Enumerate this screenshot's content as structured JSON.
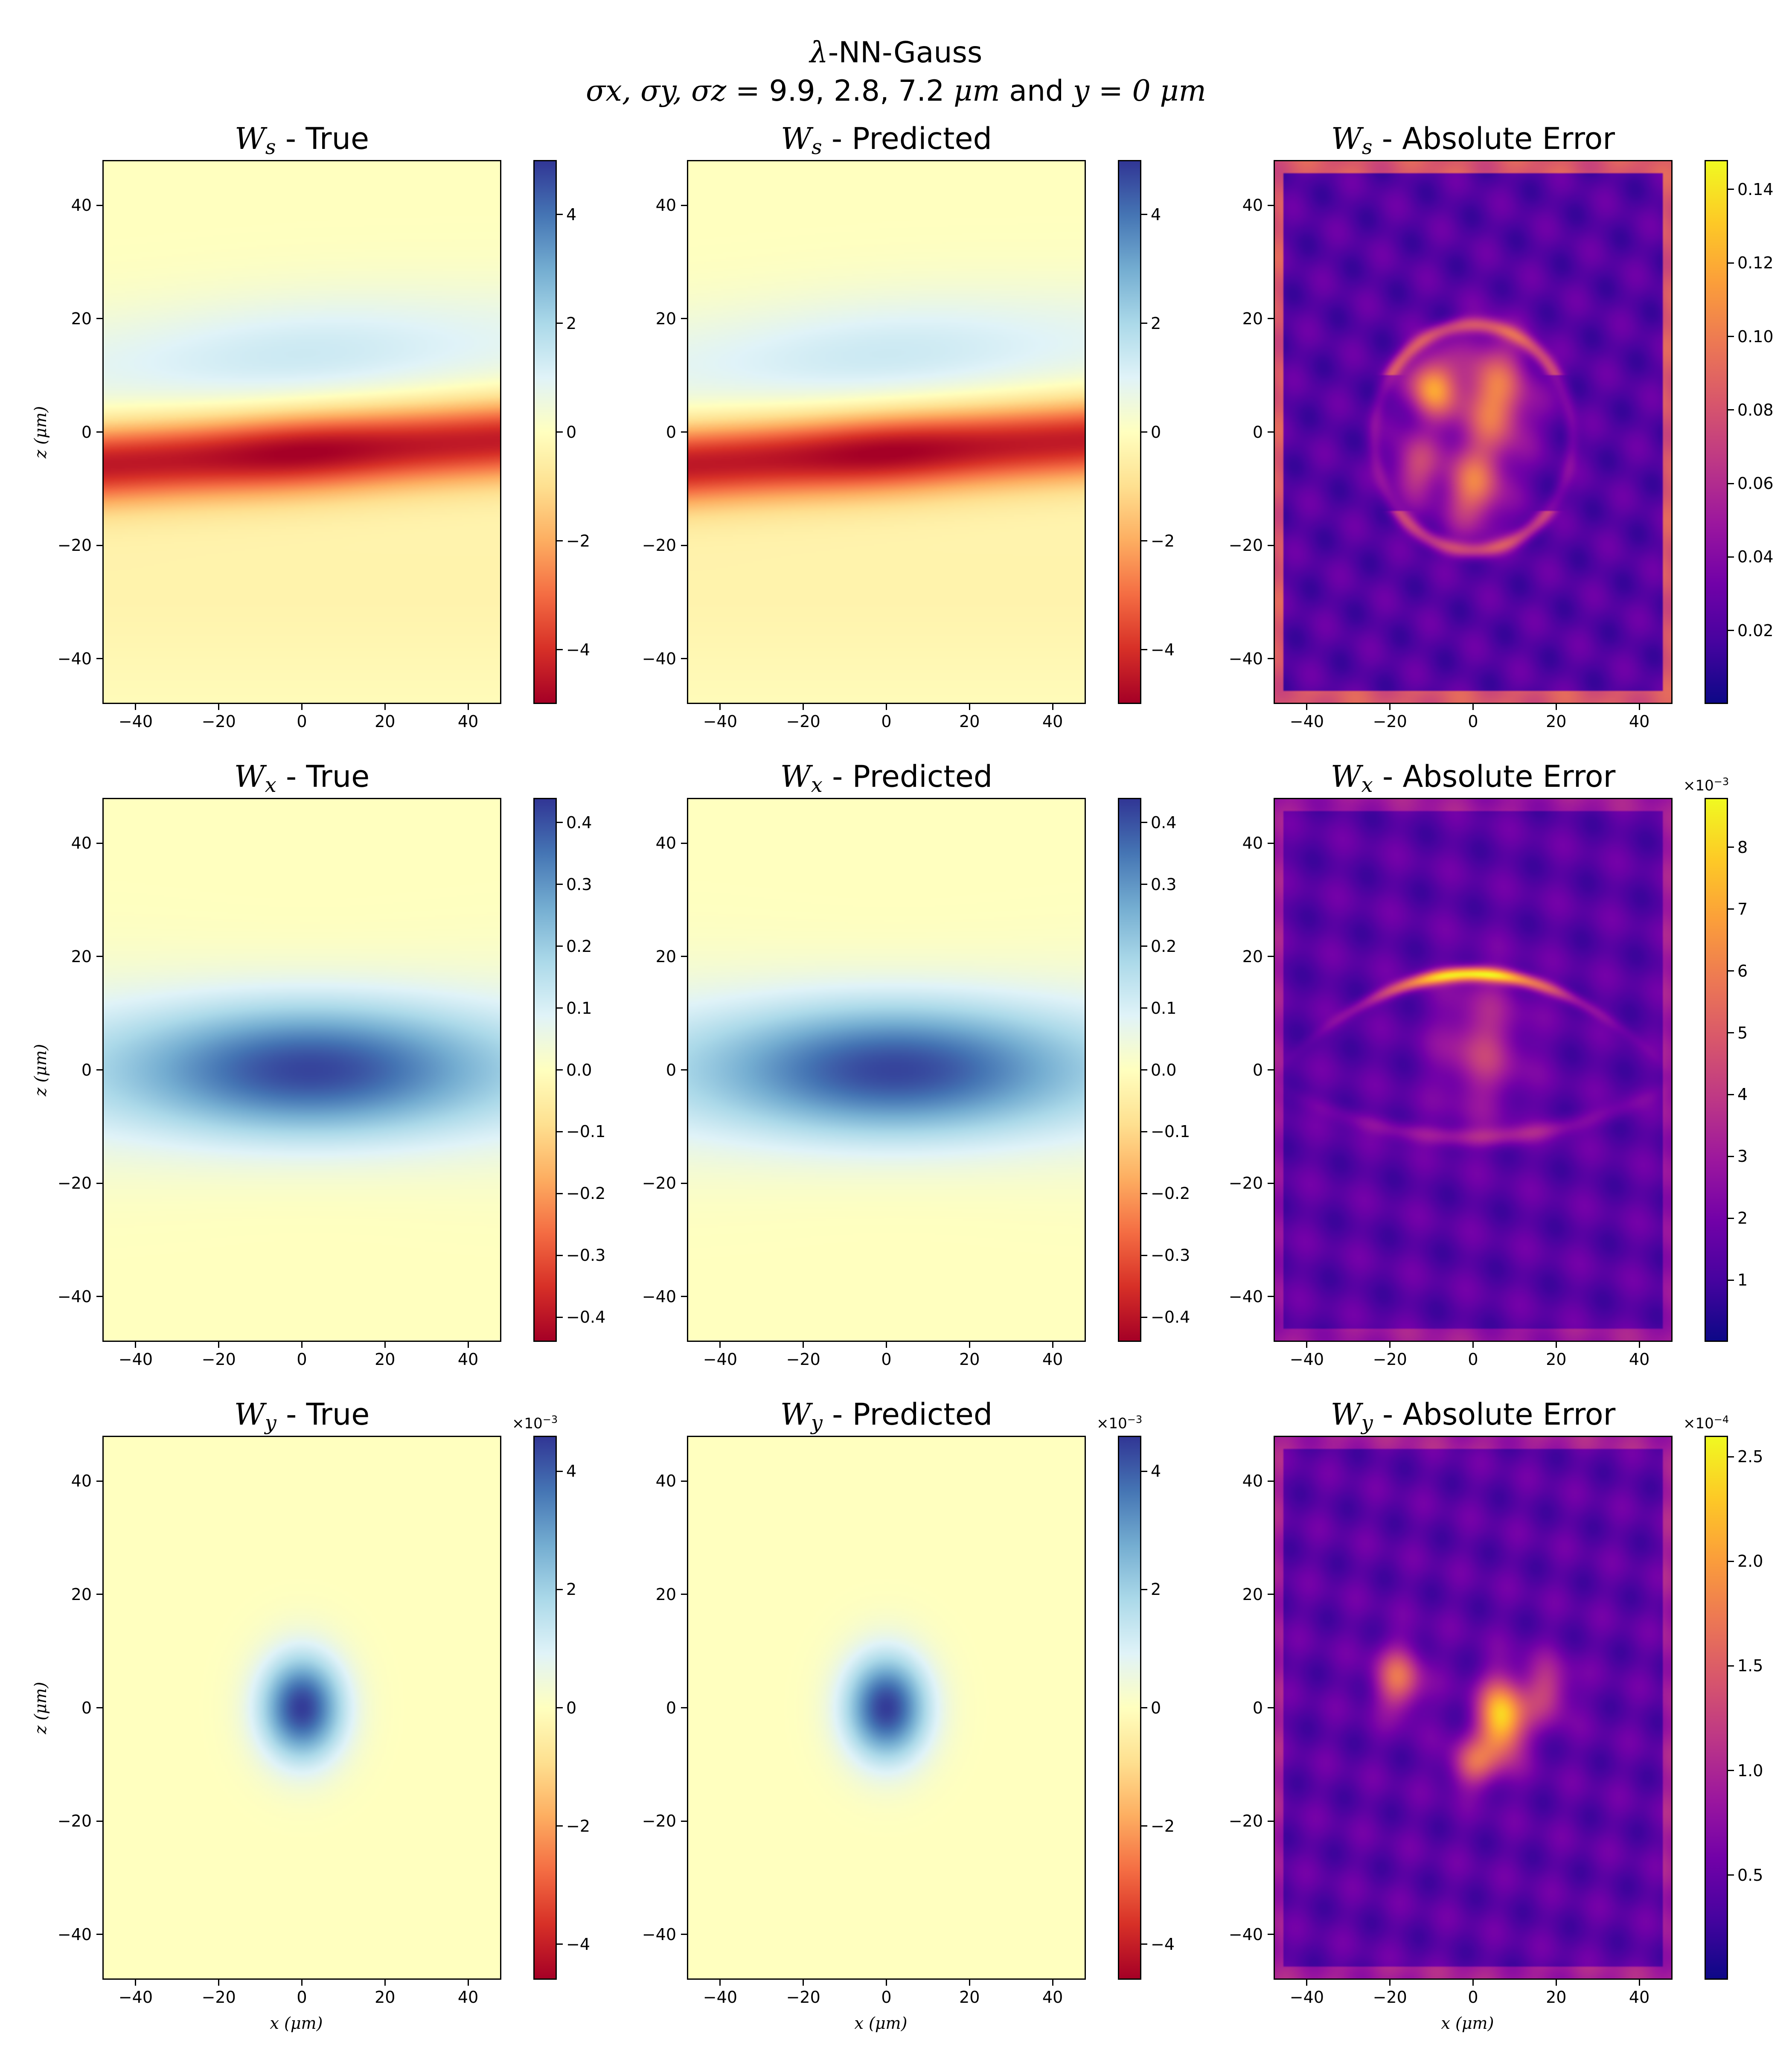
{
  "suptitle": {
    "line1_lambda": "λ",
    "line1_rest": "-NN-Gauss",
    "line2_sigmas": "σx, σy, σz = ",
    "line2_values": " 9.9, 2.8, 7.2 ",
    "line2_unit": "μm",
    "line2_mid": "  and ",
    "line2_y": "y = 0 ",
    "line2_unit2": "μm"
  },
  "labels": {
    "xlabel": "x  (μm)",
    "xlabel_var": "x",
    "xlabel_unit": "(μm)",
    "ylabel": "z  (μm)",
    "ylabel_var": "z",
    "ylabel_unit": "(μm)"
  },
  "colors": {
    "rdylbu_low": "#a50026",
    "rdylbu_mid": "#ffffbf",
    "rdylbu_high": "#313695",
    "plasma_low": "#0d0887",
    "plasma_high": "#f0f921"
  },
  "chart_data": [
    {
      "type": "heatmap",
      "row": 0,
      "col": 0,
      "var": "W",
      "sub": "s",
      "title_suffix": " - True",
      "title": "Ws - True",
      "colormap": "RdYlBu",
      "xlim": [
        -48,
        48
      ],
      "ylim": [
        -48,
        48
      ],
      "xticks": [
        "−40",
        "−20",
        "0",
        "20",
        "40"
      ],
      "yticks": [
        "−40",
        "−20",
        "0",
        "20",
        "40"
      ],
      "clim": [
        -5,
        5
      ],
      "cticks": [
        "−4",
        "−2",
        "0",
        "2",
        "4"
      ],
      "ctick_values": [
        -4,
        -2,
        0,
        2,
        4
      ],
      "offset_label": "",
      "field": "ws"
    },
    {
      "type": "heatmap",
      "row": 0,
      "col": 1,
      "var": "W",
      "sub": "s",
      "title_suffix": " - Predicted",
      "title": "Ws - Predicted",
      "colormap": "RdYlBu",
      "xlim": [
        -48,
        48
      ],
      "ylim": [
        -48,
        48
      ],
      "xticks": [
        "−40",
        "−20",
        "0",
        "20",
        "40"
      ],
      "yticks": [
        "−40",
        "−20",
        "0",
        "20",
        "40"
      ],
      "clim": [
        -5,
        5
      ],
      "cticks": [
        "−4",
        "−2",
        "0",
        "2",
        "4"
      ],
      "ctick_values": [
        -4,
        -2,
        0,
        2,
        4
      ],
      "offset_label": "",
      "field": "ws"
    },
    {
      "type": "heatmap",
      "row": 0,
      "col": 2,
      "var": "W",
      "sub": "s",
      "title_suffix": " - Absolute Error",
      "title": "Ws - Absolute Error",
      "colormap": "plasma",
      "xlim": [
        -48,
        48
      ],
      "ylim": [
        -48,
        48
      ],
      "xticks": [
        "−40",
        "−20",
        "0",
        "20",
        "40"
      ],
      "yticks": [
        "−40",
        "−20",
        "0",
        "20",
        "40"
      ],
      "clim": [
        0,
        0.148
      ],
      "cticks": [
        "0.02",
        "0.04",
        "0.06",
        "0.08",
        "0.10",
        "0.12",
        "0.14"
      ],
      "ctick_values": [
        0.02,
        0.04,
        0.06,
        0.08,
        0.1,
        0.12,
        0.14
      ],
      "offset_label": "",
      "field": "err_s"
    },
    {
      "type": "heatmap",
      "row": 1,
      "col": 0,
      "var": "W",
      "sub": "x",
      "title_suffix": " - True",
      "title": "Wx - True",
      "colormap": "RdYlBu",
      "xlim": [
        -48,
        48
      ],
      "ylim": [
        -48,
        48
      ],
      "xticks": [
        "−40",
        "−20",
        "0",
        "20",
        "40"
      ],
      "yticks": [
        "−40",
        "−20",
        "0",
        "20",
        "40"
      ],
      "clim": [
        -0.44,
        0.44
      ],
      "cticks": [
        "−0.4",
        "−0.3",
        "−0.2",
        "−0.1",
        "0.0",
        "0.1",
        "0.2",
        "0.3",
        "0.4"
      ],
      "ctick_values": [
        -0.4,
        -0.3,
        -0.2,
        -0.1,
        0.0,
        0.1,
        0.2,
        0.3,
        0.4
      ],
      "offset_label": "",
      "field": "wx"
    },
    {
      "type": "heatmap",
      "row": 1,
      "col": 1,
      "var": "W",
      "sub": "x",
      "title_suffix": " - Predicted",
      "title": "Wx - Predicted",
      "colormap": "RdYlBu",
      "xlim": [
        -48,
        48
      ],
      "ylim": [
        -48,
        48
      ],
      "xticks": [
        "−40",
        "−20",
        "0",
        "20",
        "40"
      ],
      "yticks": [
        "−40",
        "−20",
        "0",
        "20",
        "40"
      ],
      "clim": [
        -0.44,
        0.44
      ],
      "cticks": [
        "−0.4",
        "−0.3",
        "−0.2",
        "−0.1",
        "0.0",
        "0.1",
        "0.2",
        "0.3",
        "0.4"
      ],
      "ctick_values": [
        -0.4,
        -0.3,
        -0.2,
        -0.1,
        0.0,
        0.1,
        0.2,
        0.3,
        0.4
      ],
      "offset_label": "",
      "field": "wx"
    },
    {
      "type": "heatmap",
      "row": 1,
      "col": 2,
      "var": "W",
      "sub": "x",
      "title_suffix": " - Absolute Error",
      "title": "Wx - Absolute Error",
      "colormap": "plasma",
      "xlim": [
        -48,
        48
      ],
      "ylim": [
        -48,
        48
      ],
      "xticks": [
        "−40",
        "−20",
        "0",
        "20",
        "40"
      ],
      "yticks": [
        "−40",
        "−20",
        "0",
        "20",
        "40"
      ],
      "clim": [
        0,
        8.8
      ],
      "cticks": [
        "1",
        "2",
        "3",
        "4",
        "5",
        "6",
        "7",
        "8"
      ],
      "ctick_values": [
        1,
        2,
        3,
        4,
        5,
        6,
        7,
        8
      ],
      "offset_label": "×10",
      "offset_exp": "−3",
      "field": "err_x"
    },
    {
      "type": "heatmap",
      "row": 2,
      "col": 0,
      "var": "W",
      "sub": "y",
      "title_suffix": " - True",
      "title": "Wy - True",
      "colormap": "RdYlBu",
      "xlim": [
        -48,
        48
      ],
      "ylim": [
        -48,
        48
      ],
      "xticks": [
        "−40",
        "−20",
        "0",
        "20",
        "40"
      ],
      "yticks": [
        "−40",
        "−20",
        "0",
        "20",
        "40"
      ],
      "clim": [
        -4.6,
        4.6
      ],
      "cticks": [
        "−4",
        "−2",
        "0",
        "2",
        "4"
      ],
      "ctick_values": [
        -4,
        -2,
        0,
        2,
        4
      ],
      "offset_label": "×10",
      "offset_exp": "−3",
      "field": "wy"
    },
    {
      "type": "heatmap",
      "row": 2,
      "col": 1,
      "var": "W",
      "sub": "y",
      "title_suffix": " - Predicted",
      "title": "Wy - Predicted",
      "colormap": "RdYlBu",
      "xlim": [
        -48,
        48
      ],
      "ylim": [
        -48,
        48
      ],
      "xticks": [
        "−40",
        "−20",
        "0",
        "20",
        "40"
      ],
      "yticks": [
        "−40",
        "−20",
        "0",
        "20",
        "40"
      ],
      "clim": [
        -4.6,
        4.6
      ],
      "cticks": [
        "−4",
        "−2",
        "0",
        "2",
        "4"
      ],
      "ctick_values": [
        -4,
        -2,
        0,
        2,
        4
      ],
      "offset_label": "×10",
      "offset_exp": "−3",
      "field": "wy"
    },
    {
      "type": "heatmap",
      "row": 2,
      "col": 2,
      "var": "W",
      "sub": "y",
      "title_suffix": " - Absolute Error",
      "title": "Wy - Absolute Error",
      "colormap": "plasma",
      "xlim": [
        -48,
        48
      ],
      "ylim": [
        -48,
        48
      ],
      "xticks": [
        "−40",
        "−20",
        "0",
        "20",
        "40"
      ],
      "yticks": [
        "−40",
        "−20",
        "0",
        "20",
        "40"
      ],
      "clim": [
        0,
        2.6
      ],
      "cticks": [
        "0.5",
        "1.0",
        "1.5",
        "2.0",
        "2.5"
      ],
      "ctick_values": [
        0.5,
        1.0,
        1.5,
        2.0,
        2.5
      ],
      "offset_label": "×10",
      "offset_exp": "−4",
      "field": "err_y"
    }
  ]
}
